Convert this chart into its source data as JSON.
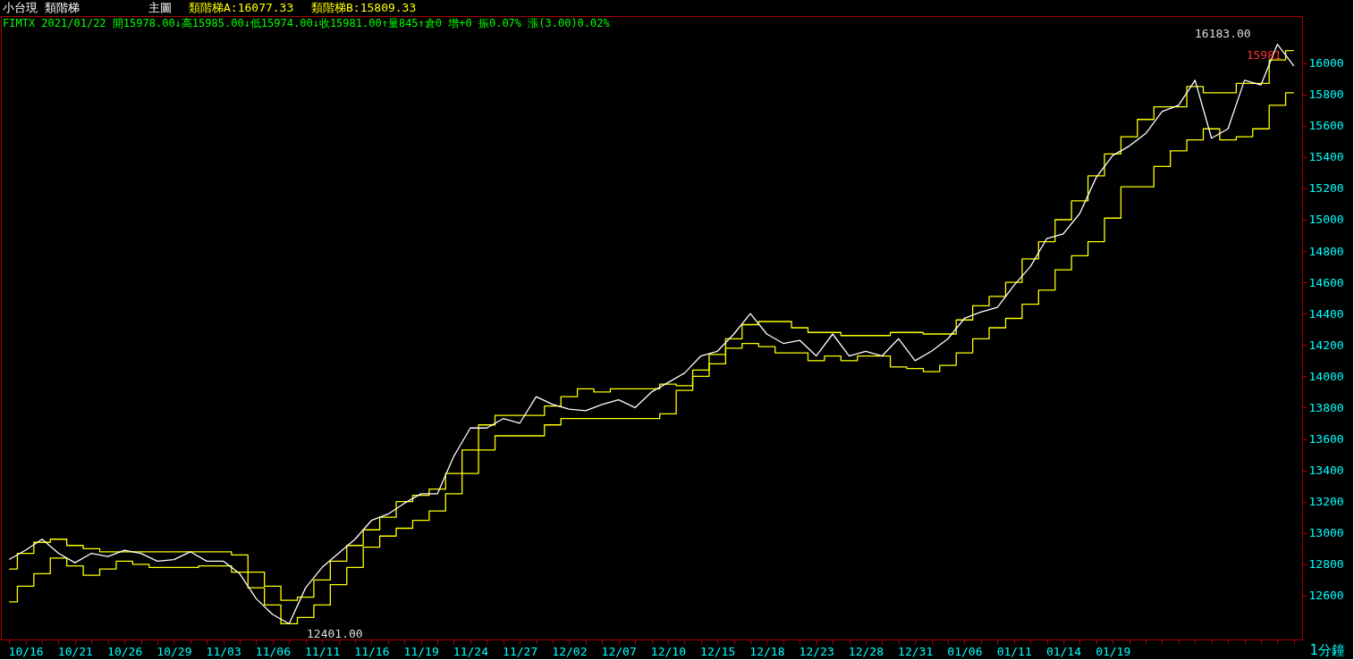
{
  "chart_data": {
    "type": "line",
    "title": "小台現 類階梯",
    "subtitle": "FIMTX 2021/01/22 開15978.00↓高15985.00↓低15974.00↓收15981.00↑量845↑倉0 增+0 振0.07% 漲(3.00)0.02%",
    "categories": [
      null,
      "10/16",
      null,
      null,
      "10/21",
      null,
      null,
      "10/26",
      null,
      null,
      "10/29",
      null,
      null,
      "11/03",
      null,
      null,
      "11/06",
      null,
      null,
      "11/11",
      null,
      null,
      "11/16",
      null,
      null,
      "11/19",
      null,
      null,
      "11/24",
      null,
      null,
      "11/27",
      null,
      null,
      "12/02",
      null,
      null,
      "12/07",
      null,
      null,
      "12/10",
      null,
      null,
      "12/15",
      null,
      null,
      "12/18",
      null,
      null,
      "12/23",
      null,
      null,
      "12/28",
      null,
      null,
      "12/31",
      null,
      null,
      "01/06",
      null,
      null,
      "01/11",
      null,
      null,
      "01/14",
      null,
      null,
      "01/19",
      null,
      null,
      null,
      null,
      null,
      null,
      null,
      null,
      null,
      null,
      null
    ],
    "series": [
      {
        "type": "step",
        "color": "#ffff00",
        "values": [
          12770,
          12870,
          12940,
          12960,
          12920,
          12900,
          12880,
          12880,
          12880,
          12880,
          12880,
          12880,
          12880,
          12880,
          12860,
          12750,
          12660,
          12570,
          12590,
          12700,
          12820,
          12920,
          13020,
          13100,
          13200,
          13240,
          13280,
          13380,
          13530,
          13690,
          13750,
          13750,
          13750,
          13810,
          13870,
          13920,
          13900,
          13920,
          13920,
          13920,
          13950,
          13940,
          14040,
          14140,
          14240,
          14330,
          14350,
          14350,
          14310,
          14280,
          14280,
          14260,
          14260,
          14260,
          14280,
          14280,
          14270,
          14270,
          14360,
          14450,
          14510,
          14600,
          14750,
          14860,
          15000,
          15120,
          15280,
          15420,
          15530,
          15640,
          15720,
          15720,
          15850,
          15810,
          15810,
          15870,
          15870,
          16020,
          16080
        ]
      },
      {
        "type": "step",
        "color": "#ffff00",
        "values": [
          12560,
          12660,
          12740,
          12840,
          12790,
          12730,
          12770,
          12820,
          12800,
          12780,
          12780,
          12780,
          12790,
          12790,
          12750,
          12650,
          12540,
          12420,
          12460,
          12540,
          12670,
          12780,
          12910,
          12980,
          13030,
          13080,
          13140,
          13250,
          13380,
          13530,
          13620,
          13620,
          13620,
          13690,
          13730,
          13730,
          13730,
          13730,
          13730,
          13730,
          13760,
          13910,
          14000,
          14080,
          14180,
          14210,
          14190,
          14150,
          14150,
          14100,
          14130,
          14100,
          14130,
          14130,
          14060,
          14050,
          14030,
          14070,
          14150,
          14240,
          14310,
          14370,
          14460,
          14550,
          14680,
          14770,
          14860,
          15010,
          15210,
          15210,
          15340,
          15440,
          15510,
          15580,
          15510,
          15530,
          15580,
          15730,
          15810
        ]
      },
      {
        "color": "#ffffff",
        "values": [
          12830,
          12890,
          12960,
          12870,
          12810,
          12870,
          12850,
          12890,
          12870,
          12820,
          12830,
          12880,
          12820,
          12820,
          12740,
          12580,
          12480,
          12420,
          12650,
          12780,
          12870,
          12960,
          13080,
          13120,
          13190,
          13250,
          13250,
          13490,
          13670,
          13670,
          13730,
          13700,
          13870,
          13820,
          13790,
          13780,
          13820,
          13850,
          13800,
          13900,
          13960,
          14020,
          14130,
          14160,
          14270,
          14400,
          14270,
          14210,
          14230,
          14130,
          14270,
          14130,
          14160,
          14130,
          14240,
          14100,
          14160,
          14240,
          14370,
          14410,
          14440,
          14580,
          14700,
          14880,
          14910,
          15040,
          15270,
          15410,
          15470,
          15550,
          15690,
          15730,
          15890,
          15520,
          15580,
          15890,
          15860,
          16120,
          15981
        ]
      }
    ],
    "ylim": [
      12320,
      16300
    ],
    "yticks": [
      12600,
      12800,
      13000,
      13200,
      13400,
      13600,
      13800,
      14000,
      14200,
      14400,
      14600,
      14800,
      15000,
      15200,
      15400,
      15600,
      15800,
      16000
    ],
    "grid": false,
    "annotations": [
      "主圖",
      "類階梯A:16077.33",
      "類階梯B:15809.33",
      "1分鐘",
      "16183.00",
      "12401.00",
      {
        "text": "15981",
        "y": 15981
      }
    ]
  }
}
